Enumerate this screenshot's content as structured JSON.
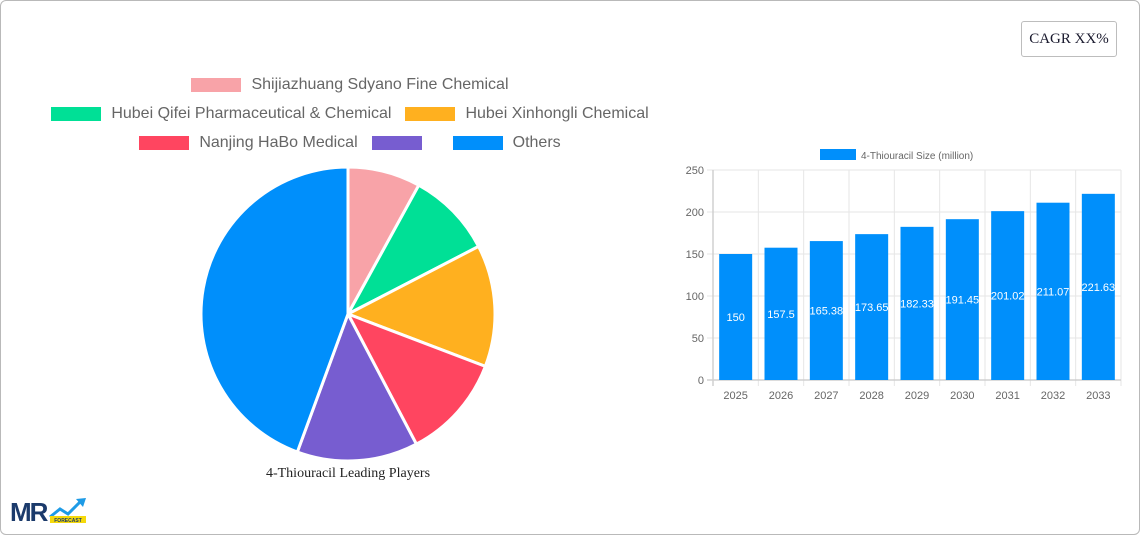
{
  "cagr_button": {
    "label": "CAGR XX%"
  },
  "pie_legend": [
    {
      "label": "Shijiazhuang Sdyano Fine Chemical",
      "color": "#f8a3a8"
    },
    {
      "label": "Hubei Qifei Pharmaceutical & Chemical",
      "color": "#00e096"
    },
    {
      "label": "Hubei Xinhongli Chemical",
      "color": "#ffb01f"
    },
    {
      "label": "Nanjing HaBo Medical",
      "color": "#ff4560"
    },
    {
      "label": "",
      "color": "#775dd0"
    },
    {
      "label": "Others",
      "color": "#008ffb"
    }
  ],
  "bar_legend": {
    "label": "4-Thiouracil Size (million)",
    "color": "#008ffb"
  },
  "logo": {
    "text": "MR",
    "sub": "FORECAST"
  },
  "chart_data": [
    {
      "type": "pie",
      "title": "4-Thiouracil Leading Players",
      "categories": [
        "Shijiazhuang Sdyano Fine Chemical",
        "Hubei Qifei Pharmaceutical & Chemical",
        "Hubei Xinhongli Chemical",
        "Nanjing HaBo Medical",
        "",
        "Others"
      ],
      "values": [
        8.0,
        9.4,
        13.4,
        11.5,
        13.3,
        44.4
      ],
      "colors": [
        "#f8a3a8",
        "#00e096",
        "#ffb01f",
        "#ff4560",
        "#775dd0",
        "#008ffb"
      ],
      "legend_position": "top"
    },
    {
      "type": "bar",
      "title": "",
      "categories": [
        "2025",
        "2026",
        "2027",
        "2028",
        "2029",
        "2030",
        "2031",
        "2032",
        "2033"
      ],
      "series": [
        {
          "name": "4-Thiouracil Size (million)",
          "values": [
            150,
            157.5,
            165.38,
            173.65,
            182.33,
            191.45,
            201.02,
            211.07,
            221.63
          ]
        }
      ],
      "data_labels": [
        "150",
        "157.5",
        "165.38",
        "173.65",
        "182.33",
        "191.45",
        "201.02",
        "211.07",
        "221.63"
      ],
      "xlabel": "",
      "ylabel": "",
      "ylim": [
        0,
        250
      ],
      "yticks": [
        "0",
        "50",
        "100",
        "150",
        "200",
        "250"
      ],
      "grid": true,
      "legend_position": "top"
    }
  ]
}
